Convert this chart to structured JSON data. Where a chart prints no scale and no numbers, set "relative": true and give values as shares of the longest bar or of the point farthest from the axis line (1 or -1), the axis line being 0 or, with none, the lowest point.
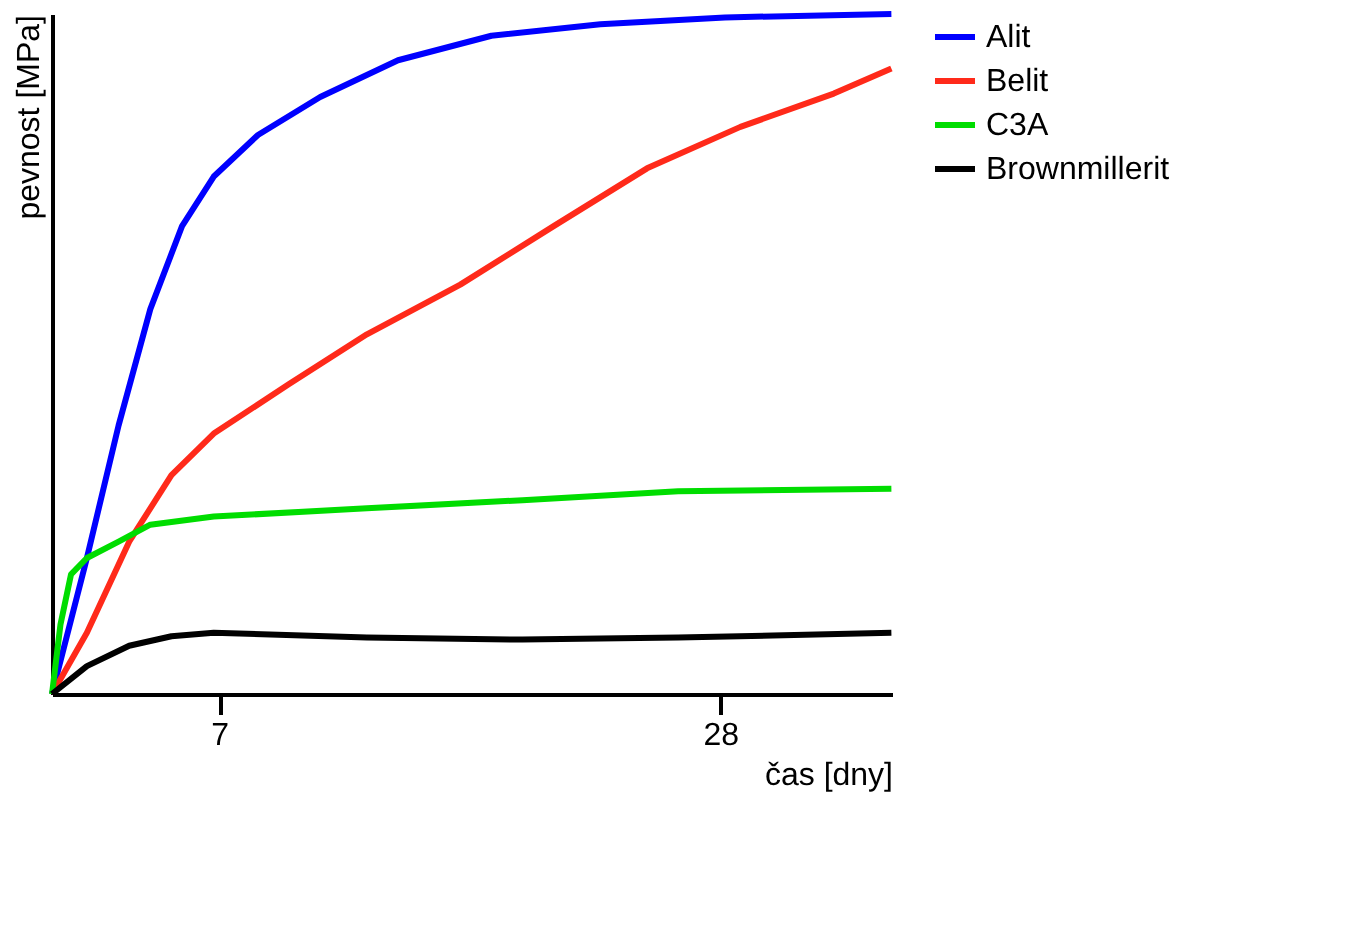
{
  "chart_data": {
    "type": "line",
    "xlabel": "čas [dny]",
    "ylabel": "pevnost [MPa]",
    "relative": true,
    "xlim": [
      0,
      35.2
    ],
    "xticks": [
      7,
      28
    ],
    "legend": "right",
    "grid": false,
    "marker": "none",
    "line_style": "solid",
    "series": [
      {
        "name": "Alit",
        "color": "#0000ff",
        "x": [
          0,
          1.462,
          2.791,
          4.12,
          5.449,
          6.778,
          8.63,
          11.239,
          14.5,
          18.413,
          22.978,
          28.196,
          35.174
        ],
        "values": [
          0,
          0.2,
          0.395,
          0.566,
          0.688,
          0.761,
          0.822,
          0.878,
          0.932,
          0.968,
          0.985,
          0.995,
          1
        ]
      },
      {
        "name": "Belit",
        "color": "#ff2a1a",
        "x": [
          0,
          1.462,
          3.234,
          5.006,
          6.778,
          9.935,
          13.196,
          17.109,
          21.022,
          24.935,
          28.848,
          32.761,
          35.174
        ],
        "values": [
          0,
          0.09,
          0.224,
          0.322,
          0.383,
          0.456,
          0.529,
          0.602,
          0.688,
          0.773,
          0.834,
          0.883,
          0.92
        ]
      },
      {
        "name": "C3A",
        "color": "#00dd00",
        "x": [
          0,
          0.354,
          0.797,
          1.462,
          2.791,
          4.12,
          6.778,
          13.196,
          19.717,
          26.239,
          35.174
        ],
        "values": [
          0,
          0.102,
          0.176,
          0.2,
          0.224,
          0.249,
          0.261,
          0.273,
          0.285,
          0.298,
          0.302
        ]
      },
      {
        "name": "Brownmillerit",
        "color": "#000000",
        "x": [
          0,
          1.462,
          3.234,
          5.006,
          6.778,
          13.196,
          19.717,
          26.239,
          35.174
        ],
        "values": [
          0,
          0.041,
          0.071,
          0.085,
          0.09,
          0.083,
          0.08,
          0.083,
          0.09
        ]
      }
    ]
  }
}
